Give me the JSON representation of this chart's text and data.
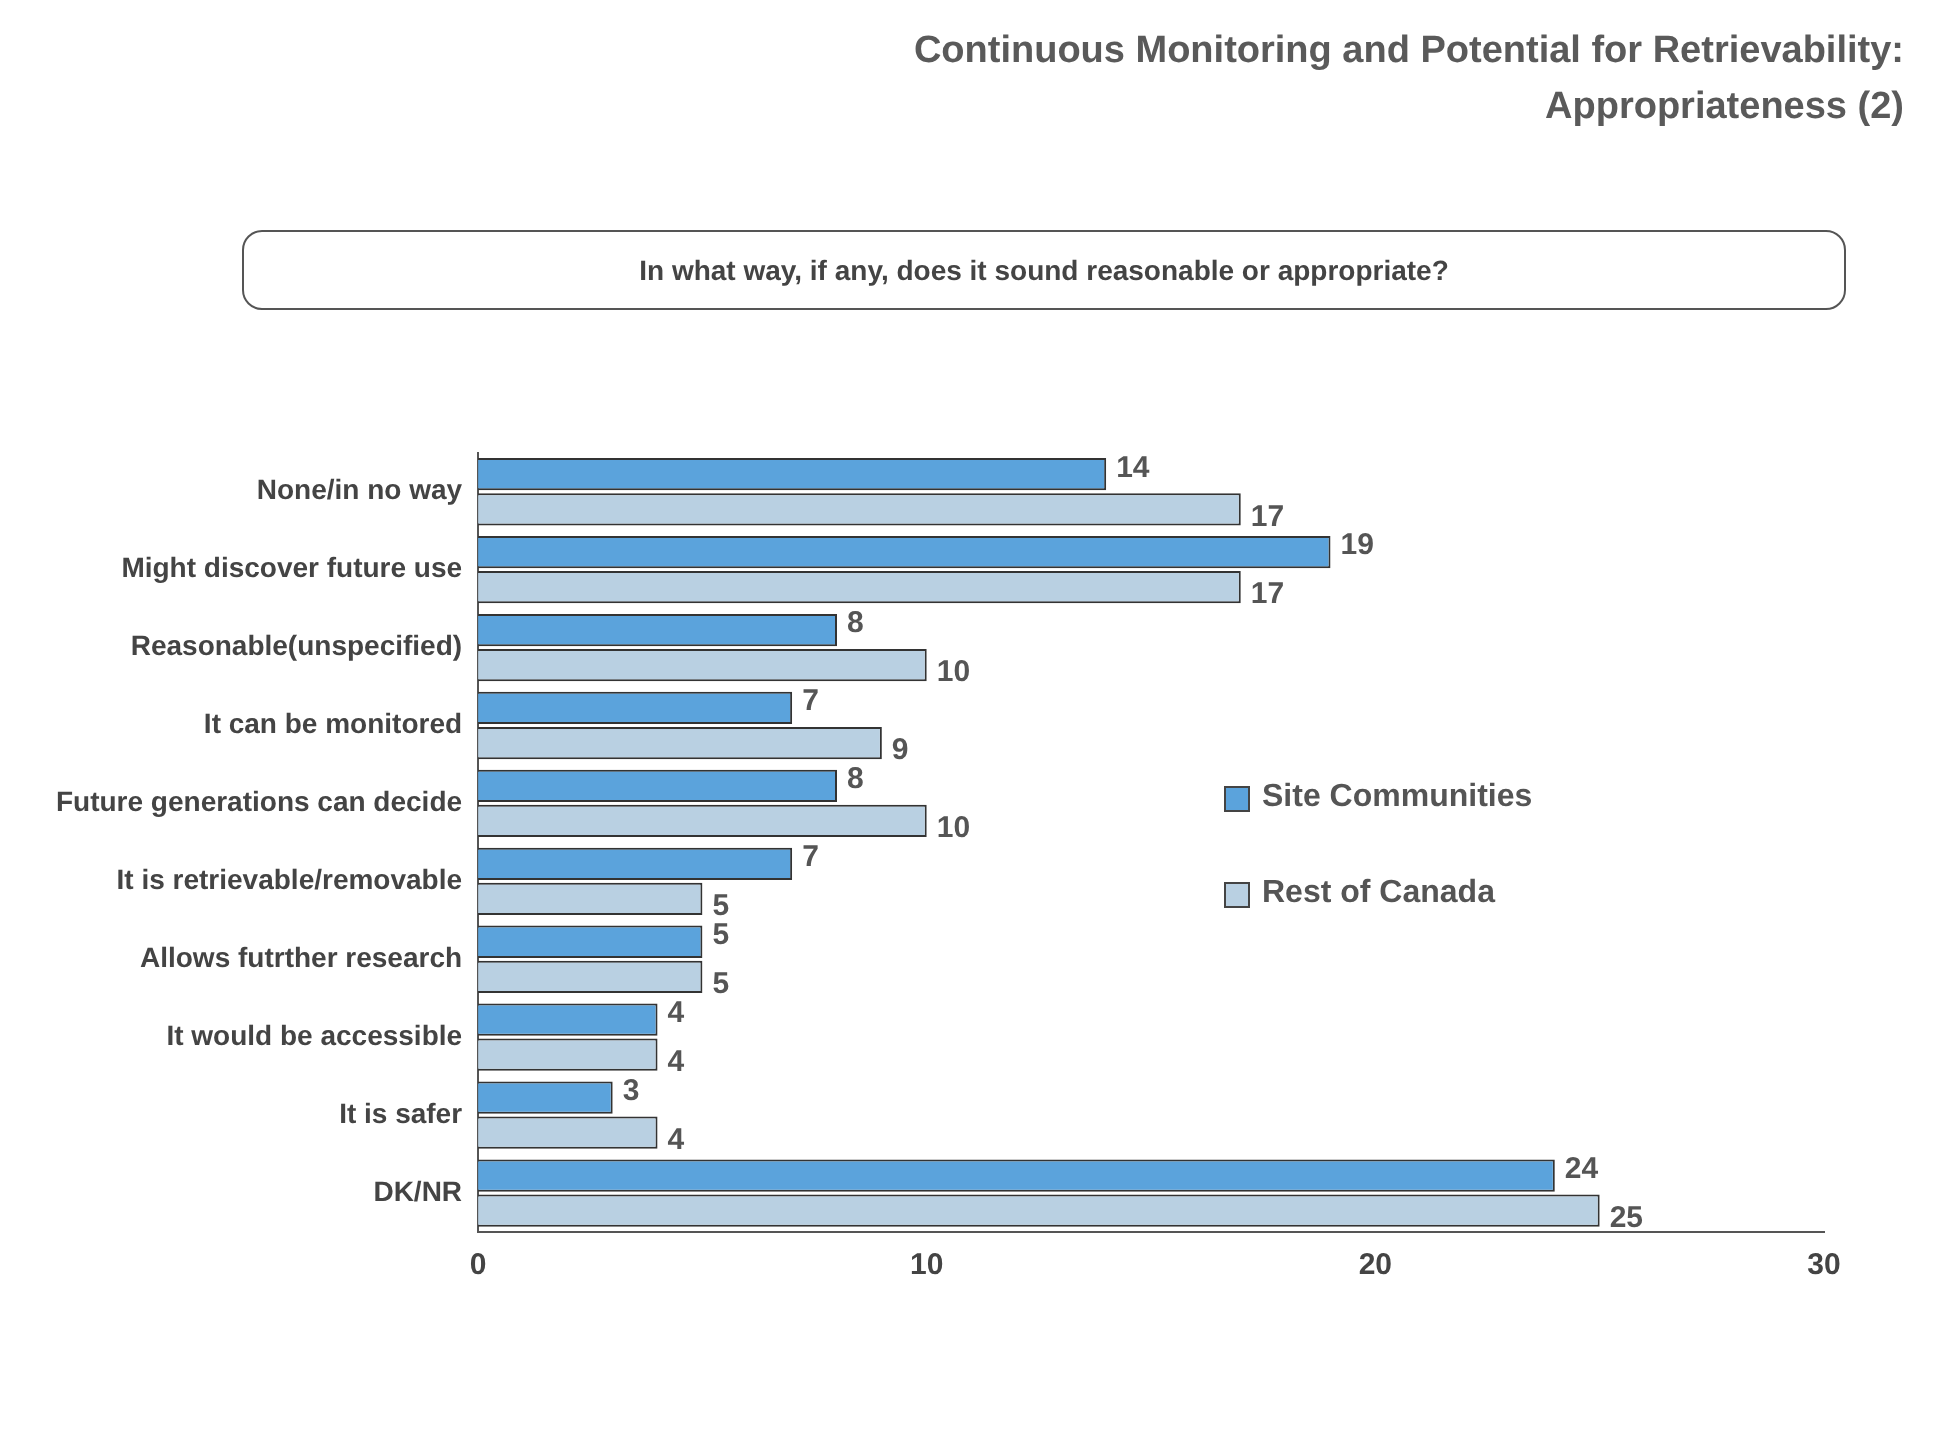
{
  "chart_data": {
    "type": "bar",
    "orientation": "horizontal",
    "title": "Continuous Monitoring and Potential for Retrievability: Appropriateness (2)",
    "subtitle": "In what way, if any, does it sound reasonable or appropriate?",
    "categories": [
      "None/in no way",
      "Might discover future use",
      "Reasonable(unspecified)",
      "It can be monitored",
      "Future generations can decide",
      "It is retrievable/removable",
      "Allows futrther research",
      "It would be accessible",
      "It is safer",
      "DK/NR"
    ],
    "series": [
      {
        "name": "Site Communities",
        "color": "#5ba3dc",
        "values": [
          14,
          19,
          8,
          7,
          8,
          7,
          5,
          4,
          3,
          24
        ]
      },
      {
        "name": "Rest of Canada",
        "color": "#b9d0e2",
        "values": [
          17,
          17,
          10,
          9,
          10,
          5,
          5,
          4,
          4,
          25
        ]
      }
    ],
    "xlim": [
      0,
      30
    ],
    "xticks": [
      0,
      10,
      20,
      30
    ],
    "grid": false,
    "legend": "right",
    "data_labels": true
  }
}
